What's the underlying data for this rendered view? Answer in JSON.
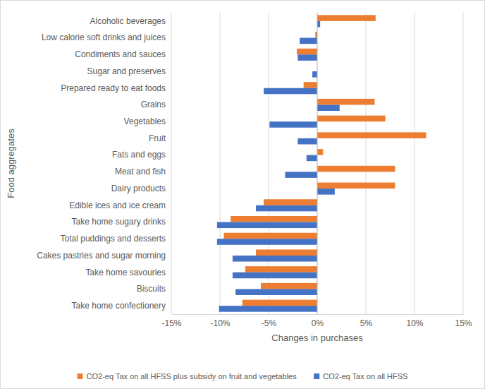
{
  "chart_data": {
    "type": "bar",
    "orientation": "horizontal",
    "x_label": "Changes in purchases",
    "y_label": "Food aggregates",
    "categories": [
      "Alcoholic beverages",
      "Low calorie soft drinks and juices",
      "Condiments and sauces",
      "Sugar and preserves",
      "Prepared ready to eat foods",
      "Grains",
      "Vegetables",
      "Fruit",
      "Fats and eggs",
      "Meat and fish",
      "Dairy products",
      "Edible ices and ice cream",
      "Take home sugary drinks",
      "Total puddings and desserts",
      "Cakes pastries and sugar morning",
      "Take home savouries",
      "Biscuits",
      "Take home confectionery"
    ],
    "series": [
      {
        "name": "CO2-eq Tax on all HFSS plus subsidy on fruit and vegetables",
        "color": "#ed7d31",
        "values": [
          6.0,
          -0.2,
          -2.1,
          0,
          -1.4,
          5.9,
          7.0,
          11.2,
          0.6,
          8.0,
          8.0,
          -5.5,
          -8.9,
          -9.6,
          -6.3,
          -7.4,
          -5.8,
          -7.7
        ]
      },
      {
        "name": "CO2-eq Tax on all HFSS",
        "color": "#4472c4",
        "values": [
          0.3,
          -1.8,
          -2.0,
          -0.5,
          -5.5,
          2.3,
          -4.9,
          -2.0,
          -1.1,
          -3.3,
          1.8,
          -6.3,
          -10.3,
          -10.3,
          -8.7,
          -8.7,
          -8.4,
          -10.1
        ]
      }
    ],
    "xlim": [
      -15,
      15
    ],
    "xticks": [
      {
        "value": -15,
        "label": "-15%"
      },
      {
        "value": -10,
        "label": "-10%"
      },
      {
        "value": -5,
        "label": "-5%"
      },
      {
        "value": 0,
        "label": "0%"
      },
      {
        "value": 5,
        "label": "5%"
      },
      {
        "value": 10,
        "label": "10%"
      },
      {
        "value": 15,
        "label": "15%"
      }
    ],
    "grid": true,
    "legend": "bottom"
  }
}
